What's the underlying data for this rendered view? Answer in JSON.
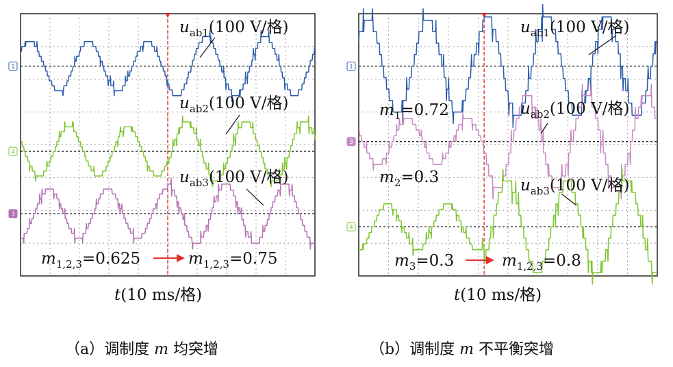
{
  "chart_data": [
    {
      "type": "line",
      "panel": "a",
      "caption": "（a）调制度 m 均突增",
      "xlabel": "t(10 ms/格)",
      "x_divisions": 10,
      "y_divisions": 8,
      "grid": true,
      "trigger_line_division": 5,
      "annotation": {
        "before": "m1,2,3=0.625",
        "after": "m1,2,3=0.75",
        "arrow": "→"
      },
      "series": [
        {
          "name": "uab1(100 V/格)",
          "color": "#2a5caa",
          "marker": "1",
          "offset_div": 1.6,
          "amp_before_div": 0.75,
          "amp_after_div": 0.9,
          "cycles_per_div": 0.5
        },
        {
          "name": "uab2(100 V/格)",
          "color": "#7cc52e",
          "marker": "4",
          "offset_div": 4.2,
          "amp_before_div": 0.75,
          "amp_after_div": 0.9,
          "cycles_per_div": 0.5
        },
        {
          "name": "uab3(100 V/格)",
          "color": "#b46fb3",
          "marker": "3",
          "offset_div": 6.1,
          "amp_before_div": 0.75,
          "amp_after_div": 0.9,
          "cycles_per_div": 0.5
        }
      ]
    },
    {
      "type": "line",
      "panel": "b",
      "caption": "（b）调制度 m 不平衡突增",
      "xlabel": "t(10 ms/格)",
      "x_divisions": 10,
      "y_divisions": 8,
      "grid": true,
      "trigger_line_division": 4.2,
      "annotation": {
        "m1": "m1=0.72",
        "m2": "m2=0.3",
        "m3": "m3=0.3",
        "after": "m1,2,3=0.8",
        "arrow": "→"
      },
      "series": [
        {
          "name": "uab1(100 V/格)",
          "color": "#2a5caa",
          "marker": "1",
          "offset_div": 1.6,
          "amp_before_div": 1.4,
          "amp_after_div": 1.5,
          "cycles_per_div": 0.5
        },
        {
          "name": "uab2(100 V/格)",
          "color": "#c58ac2",
          "marker": "3",
          "offset_div": 3.9,
          "amp_before_div": 0.7,
          "amp_after_div": 1.4,
          "cycles_per_div": 0.5
        },
        {
          "name": "uab3(100 V/格)",
          "color": "#7cc52e",
          "marker": "4",
          "offset_div": 6.5,
          "amp_before_div": 0.7,
          "amp_after_div": 1.4,
          "cycles_per_div": 0.5
        }
      ]
    }
  ]
}
